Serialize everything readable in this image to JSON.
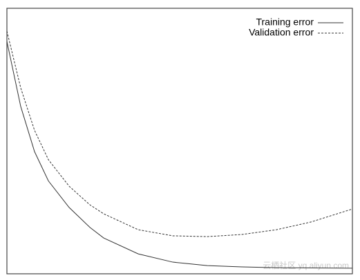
{
  "chart_data": {
    "type": "line",
    "x": [
      0,
      4,
      8,
      12,
      18,
      24,
      28,
      38,
      48,
      58,
      68,
      78,
      88,
      100
    ],
    "series": [
      {
        "name": "Training error",
        "color": "#333333",
        "line_style": "solid",
        "values": [
          87.5,
          63,
          46,
          35,
          25,
          17.5,
          13.5,
          7.5,
          4.4,
          3.1,
          2.6,
          2.3,
          2.2,
          2.1
        ]
      },
      {
        "name": "Validation error",
        "color": "#333333",
        "line_style": "dashed",
        "values": [
          91.4,
          70,
          54,
          43,
          33,
          26,
          22.6,
          16.6,
          14.3,
          14,
          14.8,
          16.6,
          19.5,
          24.4
        ]
      }
    ],
    "xlim": [
      0,
      100
    ],
    "ylim": [
      0,
      100
    ],
    "legend": "top right",
    "grid": false,
    "watermark": "云栖社区 yq.aliyun.com"
  }
}
